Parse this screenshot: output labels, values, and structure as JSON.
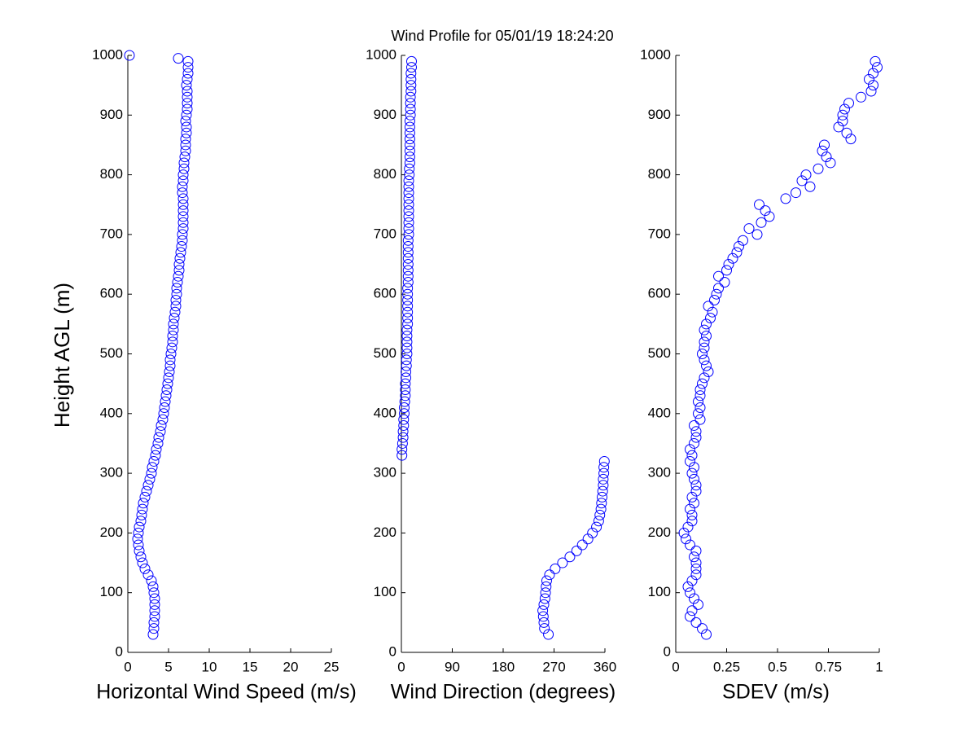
{
  "chart_data": [
    {
      "type": "scatter",
      "title": "Wind Profile for  05/01/19 18:24:20",
      "ylabel": "Height AGL (m)",
      "xlabel": "Horizontal Wind Speed (m/s)",
      "color": "#0000ff",
      "xlim": [
        0,
        25
      ],
      "ylim": [
        0,
        1000
      ],
      "xticks": [
        0,
        5,
        10,
        15,
        20,
        25
      ],
      "yticks": [
        0,
        100,
        200,
        300,
        400,
        500,
        600,
        700,
        800,
        900,
        1000
      ],
      "x": [
        3.1,
        3.2,
        3.2,
        3.3,
        3.3,
        3.3,
        3.3,
        3.2,
        3.1,
        2.9,
        2.5,
        2.1,
        1.8,
        1.6,
        1.4,
        1.3,
        1.2,
        1.3,
        1.4,
        1.6,
        1.7,
        1.8,
        1.9,
        2.1,
        2.3,
        2.5,
        2.7,
        2.9,
        3.0,
        3.2,
        3.4,
        3.5,
        3.7,
        3.8,
        4.0,
        4.1,
        4.3,
        4.4,
        4.5,
        4.6,
        4.7,
        4.8,
        4.9,
        5.0,
        5.1,
        5.2,
        5.2,
        5.3,
        5.4,
        5.5,
        5.5,
        5.6,
        5.6,
        5.7,
        5.8,
        5.9,
        5.9,
        6.0,
        6.0,
        6.1,
        6.2,
        6.3,
        6.3,
        6.4,
        6.5,
        6.6,
        6.7,
        6.7,
        6.8,
        6.8,
        6.8,
        6.8,
        6.8,
        6.8,
        6.7,
        6.7,
        6.8,
        6.8,
        6.9,
        6.9,
        7.0,
        7.1,
        7.1,
        7.1,
        7.2,
        7.2,
        7.1,
        7.2,
        7.3,
        7.3,
        7.3,
        7.3,
        7.2,
        7.3,
        7.4,
        7.4,
        7.4,
        6.2,
        0.2
      ],
      "values": [
        30,
        40,
        50,
        60,
        70,
        80,
        90,
        100,
        110,
        120,
        130,
        140,
        150,
        160,
        170,
        180,
        190,
        200,
        210,
        220,
        230,
        240,
        250,
        260,
        270,
        280,
        290,
        300,
        310,
        320,
        330,
        340,
        350,
        360,
        370,
        380,
        390,
        400,
        410,
        420,
        430,
        440,
        450,
        460,
        470,
        480,
        490,
        500,
        510,
        520,
        530,
        540,
        550,
        560,
        570,
        580,
        590,
        600,
        610,
        620,
        630,
        640,
        650,
        660,
        670,
        680,
        690,
        700,
        710,
        720,
        730,
        740,
        750,
        760,
        770,
        780,
        790,
        800,
        810,
        820,
        830,
        840,
        850,
        860,
        870,
        880,
        890,
        900,
        910,
        920,
        930,
        940,
        950,
        960,
        970,
        980,
        990,
        995,
        1000
      ]
    },
    {
      "type": "scatter",
      "xlabel": "Wind Direction (degrees)",
      "color": "#0000ff",
      "xlim": [
        0,
        360
      ],
      "ylim": [
        0,
        1000
      ],
      "xticks": [
        0,
        90,
        180,
        270,
        360
      ],
      "yticks": [
        0,
        100,
        200,
        300,
        400,
        500,
        600,
        700,
        800,
        900,
        1000
      ],
      "x": [
        260,
        253,
        252,
        251,
        250,
        252,
        254,
        255,
        256,
        257,
        262,
        272,
        285,
        298,
        310,
        320,
        330,
        338,
        345,
        349,
        351,
        353,
        354,
        355,
        356,
        357,
        357,
        358,
        358,
        359,
        1,
        1,
        2,
        3,
        3,
        4,
        4,
        5,
        5,
        6,
        7,
        7,
        7,
        8,
        8,
        9,
        9,
        10,
        10,
        10,
        10,
        10,
        11,
        11,
        11,
        11,
        11,
        11,
        11,
        12,
        12,
        12,
        12,
        12,
        12,
        12,
        12,
        13,
        13,
        13,
        13,
        13,
        13,
        13,
        13,
        13,
        13,
        14,
        14,
        15,
        15,
        15,
        15,
        15,
        15,
        15,
        15,
        16,
        16,
        16,
        16,
        17,
        17,
        17,
        17,
        18,
        18
      ],
      "values": [
        30,
        40,
        50,
        60,
        70,
        80,
        90,
        100,
        110,
        120,
        130,
        140,
        150,
        160,
        170,
        180,
        190,
        200,
        210,
        220,
        230,
        240,
        250,
        260,
        270,
        280,
        290,
        300,
        310,
        320,
        330,
        340,
        350,
        360,
        370,
        380,
        390,
        400,
        410,
        420,
        430,
        440,
        450,
        460,
        470,
        480,
        490,
        500,
        510,
        520,
        530,
        540,
        550,
        560,
        570,
        580,
        590,
        600,
        610,
        620,
        630,
        640,
        650,
        660,
        670,
        680,
        690,
        700,
        710,
        720,
        730,
        740,
        750,
        760,
        770,
        780,
        790,
        800,
        810,
        820,
        830,
        840,
        850,
        860,
        870,
        880,
        890,
        900,
        910,
        920,
        930,
        940,
        950,
        960,
        970,
        980,
        990
      ]
    },
    {
      "type": "scatter",
      "xlabel": "SDEV  (m/s)",
      "color": "#0000ff",
      "xlim": [
        0,
        1
      ],
      "ylim": [
        0,
        1000
      ],
      "xticks": [
        0,
        0.25,
        0.5,
        0.75,
        1
      ],
      "yticks": [
        0,
        100,
        200,
        300,
        400,
        500,
        600,
        700,
        800,
        900,
        1000
      ],
      "x": [
        0.15,
        0.13,
        0.1,
        0.07,
        0.08,
        0.11,
        0.09,
        0.07,
        0.06,
        0.08,
        0.1,
        0.1,
        0.1,
        0.09,
        0.1,
        0.07,
        0.05,
        0.04,
        0.06,
        0.08,
        0.08,
        0.07,
        0.09,
        0.08,
        0.1,
        0.1,
        0.09,
        0.08,
        0.09,
        0.07,
        0.08,
        0.07,
        0.09,
        0.1,
        0.1,
        0.09,
        0.12,
        0.11,
        0.12,
        0.11,
        0.12,
        0.12,
        0.13,
        0.14,
        0.16,
        0.15,
        0.14,
        0.13,
        0.14,
        0.14,
        0.15,
        0.14,
        0.15,
        0.17,
        0.18,
        0.16,
        0.19,
        0.2,
        0.21,
        0.24,
        0.21,
        0.25,
        0.26,
        0.28,
        0.3,
        0.31,
        0.33,
        0.4,
        0.36,
        0.42,
        0.46,
        0.44,
        0.41,
        0.54,
        0.59,
        0.66,
        0.62,
        0.64,
        0.7,
        0.76,
        0.74,
        0.72,
        0.73,
        0.86,
        0.84,
        0.8,
        0.82,
        0.82,
        0.83,
        0.85,
        0.91,
        0.96,
        0.97,
        0.95,
        0.97,
        0.99,
        0.98
      ],
      "values": [
        30,
        40,
        50,
        60,
        70,
        80,
        90,
        100,
        110,
        120,
        130,
        140,
        150,
        160,
        170,
        180,
        190,
        200,
        210,
        220,
        230,
        240,
        250,
        260,
        270,
        280,
        290,
        300,
        310,
        320,
        330,
        340,
        350,
        360,
        370,
        380,
        390,
        400,
        410,
        420,
        430,
        440,
        450,
        460,
        470,
        480,
        490,
        500,
        510,
        520,
        530,
        540,
        550,
        560,
        570,
        580,
        590,
        600,
        610,
        620,
        630,
        640,
        650,
        660,
        670,
        680,
        690,
        700,
        710,
        720,
        730,
        740,
        750,
        760,
        770,
        780,
        790,
        800,
        810,
        820,
        830,
        840,
        850,
        860,
        870,
        880,
        890,
        900,
        910,
        920,
        930,
        940,
        950,
        960,
        970,
        980,
        990
      ]
    }
  ]
}
